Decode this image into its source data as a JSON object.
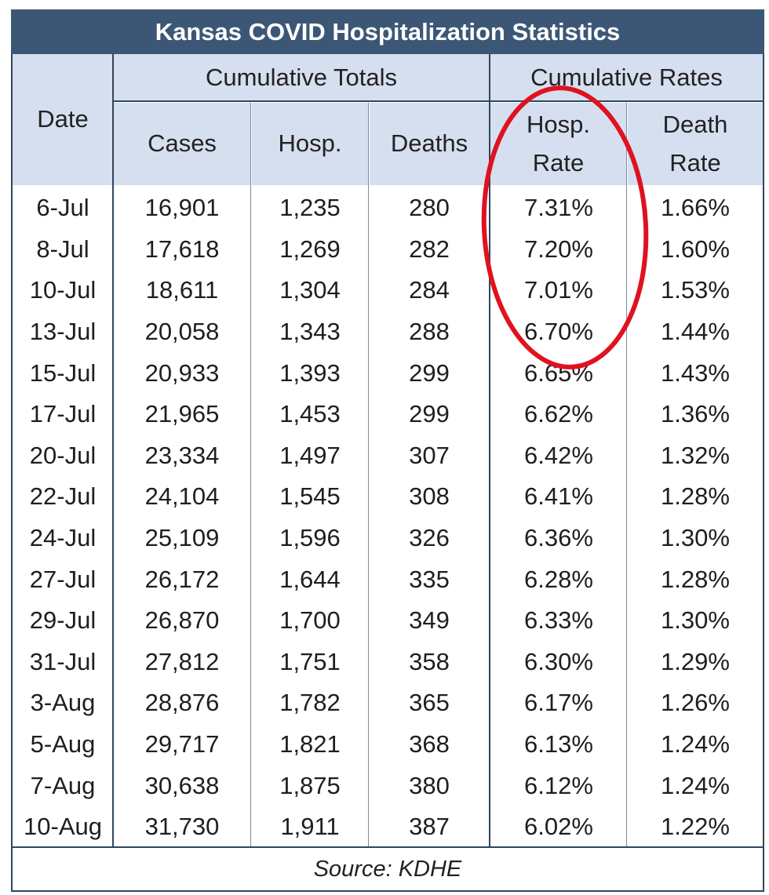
{
  "title": "Kansas COVID Hospitalization Statistics",
  "headers": {
    "date": "Date",
    "group_totals": "Cumulative Totals",
    "group_rates": "Cumulative Rates",
    "cases": "Cases",
    "hosp": "Hosp.",
    "deaths": "Deaths",
    "hosp_rate_line1": "Hosp.",
    "hosp_rate_line2": "Rate",
    "death_rate_line1": "Death",
    "death_rate_line2": "Rate"
  },
  "rows": [
    {
      "date": "6-Jul",
      "cases": "16,901",
      "hosp": "1,235",
      "deaths": "280",
      "hosp_rate": "7.31%",
      "death_rate": "1.66%"
    },
    {
      "date": "8-Jul",
      "cases": "17,618",
      "hosp": "1,269",
      "deaths": "282",
      "hosp_rate": "7.20%",
      "death_rate": "1.60%"
    },
    {
      "date": "10-Jul",
      "cases": "18,611",
      "hosp": "1,304",
      "deaths": "284",
      "hosp_rate": "7.01%",
      "death_rate": "1.53%"
    },
    {
      "date": "13-Jul",
      "cases": "20,058",
      "hosp": "1,343",
      "deaths": "288",
      "hosp_rate": "6.70%",
      "death_rate": "1.44%"
    },
    {
      "date": "15-Jul",
      "cases": "20,933",
      "hosp": "1,393",
      "deaths": "299",
      "hosp_rate": "6.65%",
      "death_rate": "1.43%"
    },
    {
      "date": "17-Jul",
      "cases": "21,965",
      "hosp": "1,453",
      "deaths": "299",
      "hosp_rate": "6.62%",
      "death_rate": "1.36%"
    },
    {
      "date": "20-Jul",
      "cases": "23,334",
      "hosp": "1,497",
      "deaths": "307",
      "hosp_rate": "6.42%",
      "death_rate": "1.32%"
    },
    {
      "date": "22-Jul",
      "cases": "24,104",
      "hosp": "1,545",
      "deaths": "308",
      "hosp_rate": "6.41%",
      "death_rate": "1.28%"
    },
    {
      "date": "24-Jul",
      "cases": "25,109",
      "hosp": "1,596",
      "deaths": "326",
      "hosp_rate": "6.36%",
      "death_rate": "1.30%"
    },
    {
      "date": "27-Jul",
      "cases": "26,172",
      "hosp": "1,644",
      "deaths": "335",
      "hosp_rate": "6.28%",
      "death_rate": "1.28%"
    },
    {
      "date": "29-Jul",
      "cases": "26,870",
      "hosp": "1,700",
      "deaths": "349",
      "hosp_rate": "6.33%",
      "death_rate": "1.30%"
    },
    {
      "date": "31-Jul",
      "cases": "27,812",
      "hosp": "1,751",
      "deaths": "358",
      "hosp_rate": "6.30%",
      "death_rate": "1.29%"
    },
    {
      "date": "3-Aug",
      "cases": "28,876",
      "hosp": "1,782",
      "deaths": "365",
      "hosp_rate": "6.17%",
      "death_rate": "1.26%"
    },
    {
      "date": "5-Aug",
      "cases": "29,717",
      "hosp": "1,821",
      "deaths": "368",
      "hosp_rate": "6.13%",
      "death_rate": "1.24%"
    },
    {
      "date": "7-Aug",
      "cases": "30,638",
      "hosp": "1,875",
      "deaths": "380",
      "hosp_rate": "6.12%",
      "death_rate": "1.24%"
    },
    {
      "date": "10-Aug",
      "cases": "31,730",
      "hosp": "1,911",
      "deaths": "387",
      "hosp_rate": "6.02%",
      "death_rate": "1.22%"
    }
  ],
  "source": "Source: KDHE",
  "colors": {
    "title_bg": "#3c5776",
    "header_bg": "#d6dff0",
    "annotation_ellipse": "#e0121f"
  }
}
